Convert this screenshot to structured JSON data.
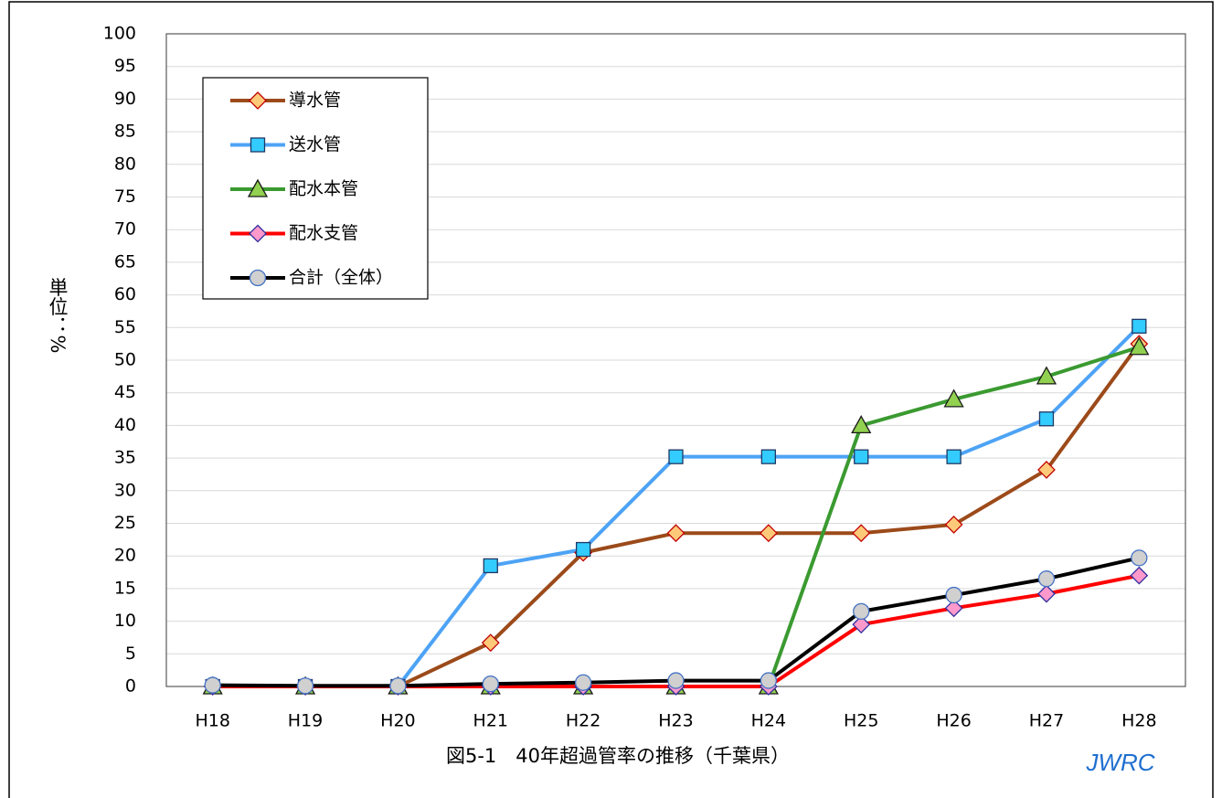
{
  "chart_data": {
    "type": "line",
    "title": "図5-1　40年超過管率の推移（千葉県）",
    "annotation": "JWRC",
    "y_label": "単位：%",
    "categories": [
      "H18",
      "H19",
      "H20",
      "H21",
      "H22",
      "H23",
      "H24",
      "H25",
      "H26",
      "H27",
      "H28"
    ],
    "series": [
      {
        "name": "導水管",
        "color": "#9c4a1a",
        "marker": "diamond",
        "marker_fill": "#ffc97a",
        "marker_stroke": "#c00000",
        "values": [
          0,
          0,
          0,
          6.7,
          20.5,
          23.5,
          23.5,
          23.5,
          24.8,
          33.2,
          52.5
        ]
      },
      {
        "name": "送水管",
        "color": "#4da3f5",
        "marker": "square",
        "marker_fill": "#33ccff",
        "marker_stroke": "#1f3864",
        "values": [
          0,
          0,
          0,
          18.5,
          21,
          35.2,
          35.2,
          35.2,
          35.2,
          41,
          55.2
        ]
      },
      {
        "name": "配水本管",
        "color": "#3a9a30",
        "marker": "triangle",
        "marker_fill": "#92d050",
        "marker_stroke": "#1a1a1a",
        "values": [
          0,
          0,
          0,
          0,
          0,
          0,
          0,
          40,
          44,
          47.5,
          52
        ]
      },
      {
        "name": "配水支管",
        "color": "#ff0000",
        "marker": "diamond",
        "marker_fill": "#ff99cc",
        "marker_stroke": "#3030a0",
        "values": [
          0,
          0,
          0,
          0,
          0,
          0,
          0,
          9.5,
          12,
          14.2,
          17
        ]
      },
      {
        "name": "合計（全体）",
        "color": "#000000",
        "marker": "circle",
        "marker_fill": "#d0d0d0",
        "marker_stroke": "#4472c4",
        "values": [
          0.2,
          0.1,
          0.1,
          0.4,
          0.6,
          0.9,
          0.9,
          11.5,
          14,
          16.5,
          19.7
        ]
      }
    ],
    "ylim": [
      0,
      100
    ],
    "yticks": [
      0,
      5,
      10,
      15,
      20,
      25,
      30,
      35,
      40,
      45,
      50,
      55,
      60,
      65,
      70,
      75,
      80,
      85,
      90,
      95,
      100
    ],
    "grid": true,
    "legend": "upper left"
  }
}
